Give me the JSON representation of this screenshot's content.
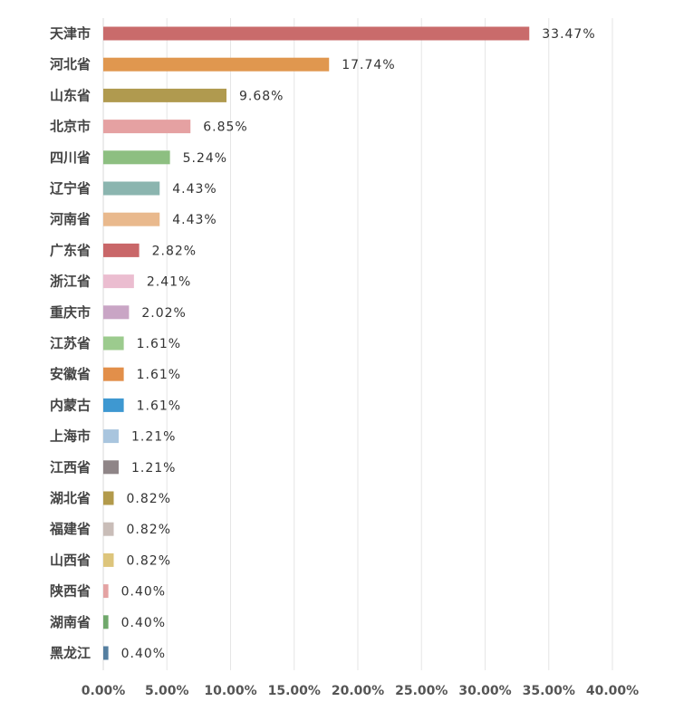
{
  "chart_data": {
    "type": "bar",
    "orientation": "horizontal",
    "categories": [
      "天津市",
      "河北省",
      "山东省",
      "北京市",
      "四川省",
      "辽宁省",
      "河南省",
      "广东省",
      "浙江省",
      "重庆市",
      "江苏省",
      "安徽省",
      "内蒙古",
      "上海市",
      "江西省",
      "湖北省",
      "福建省",
      "山西省",
      "陕西省",
      "湖南省",
      "黑龙江"
    ],
    "values": [
      33.47,
      17.74,
      9.68,
      6.85,
      5.24,
      4.43,
      4.43,
      2.82,
      2.41,
      2.02,
      1.61,
      1.61,
      1.61,
      1.21,
      1.21,
      0.82,
      0.82,
      0.82,
      0.4,
      0.4,
      0.4
    ],
    "value_labels": [
      "33.47%",
      "17.74%",
      "9.68%",
      "6.85%",
      "5.24%",
      "4.43%",
      "4.43%",
      "2.82%",
      "2.41%",
      "2.02%",
      "1.61%",
      "1.61%",
      "1.61%",
      "1.21%",
      "1.21%",
      "0.82%",
      "0.82%",
      "0.82%",
      "0.40%",
      "0.40%",
      "0.40%"
    ],
    "colors": [
      "#c96b6b",
      "#e0974f",
      "#b09a4f",
      "#e5a1a2",
      "#8dbf81",
      "#8bb5af",
      "#e9b98d",
      "#c96769",
      "#ebbdd0",
      "#c9a5c5",
      "#9ccb8e",
      "#e28f4a",
      "#3e98d1",
      "#a9c5de",
      "#8f8587",
      "#b29a4b",
      "#c9bdb8",
      "#ddc57c",
      "#e4a3a3",
      "#70a86b",
      "#557fa0"
    ],
    "x_ticks": [
      "0.00%",
      "5.00%",
      "10.00%",
      "15.00%",
      "20.00%",
      "25.00%",
      "30.00%",
      "35.00%",
      "40.00%"
    ],
    "xlim": [
      0,
      40
    ],
    "grid": true,
    "legend": "none"
  }
}
